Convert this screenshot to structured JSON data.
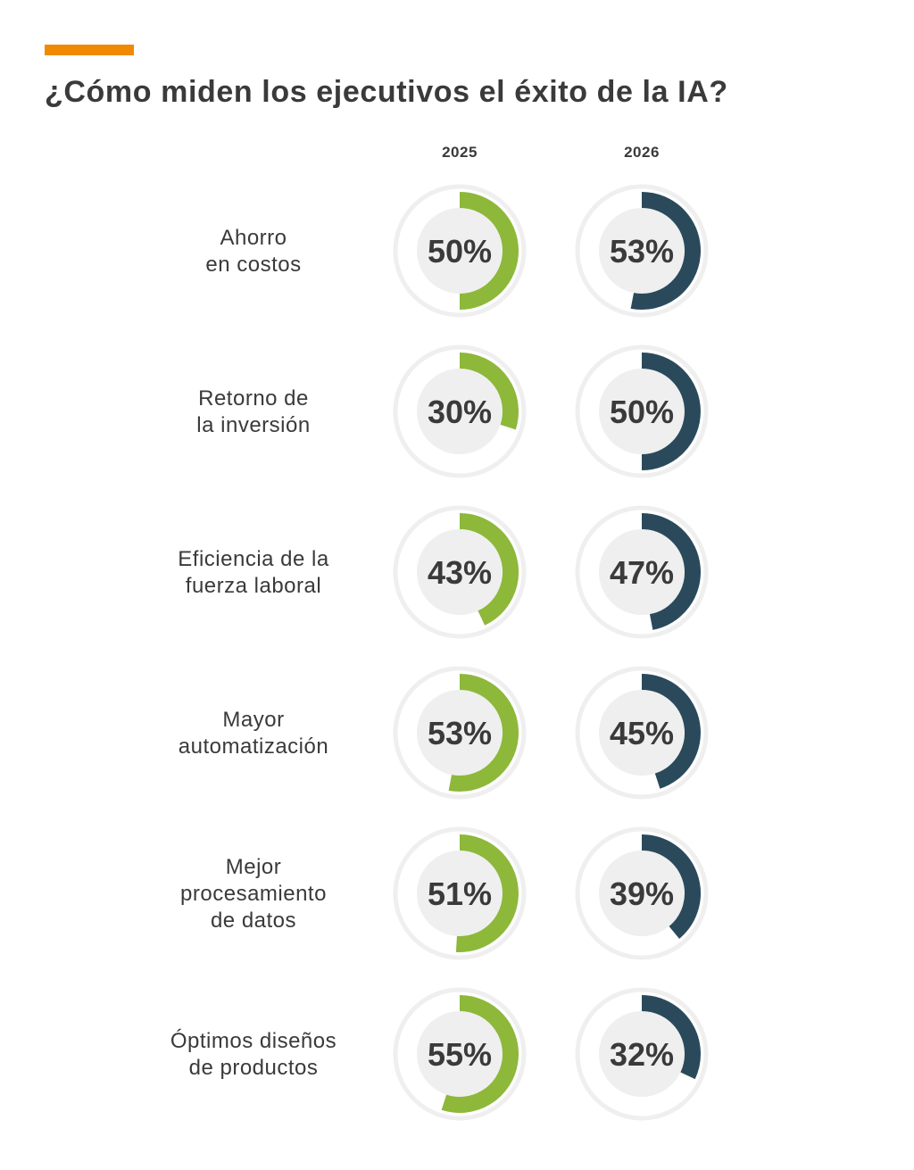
{
  "colors": {
    "accent": "#f08a00",
    "series_2025": "#8db83a",
    "series_2026": "#2a4a5c",
    "track": "#efefef",
    "text": "#3a3a3a"
  },
  "chart_data": {
    "type": "donut-grid",
    "title": "¿Cómo miden los ejecutivos el éxito de la IA?",
    "series": [
      {
        "name": "2025",
        "values": [
          50,
          30,
          43,
          53,
          51,
          55
        ]
      },
      {
        "name": "2026",
        "values": [
          53,
          50,
          47,
          45,
          39,
          32
        ]
      }
    ],
    "categories": [
      [
        "Ahorro",
        "en costos"
      ],
      [
        "Retorno de",
        "la inversión"
      ],
      [
        "Eficiencia de la",
        "fuerza laboral"
      ],
      [
        "Mayor",
        "automatización"
      ],
      [
        "Mejor",
        "procesamiento",
        "de datos"
      ],
      [
        "Óptimos diseños",
        "de productos"
      ]
    ],
    "unit": "%"
  }
}
